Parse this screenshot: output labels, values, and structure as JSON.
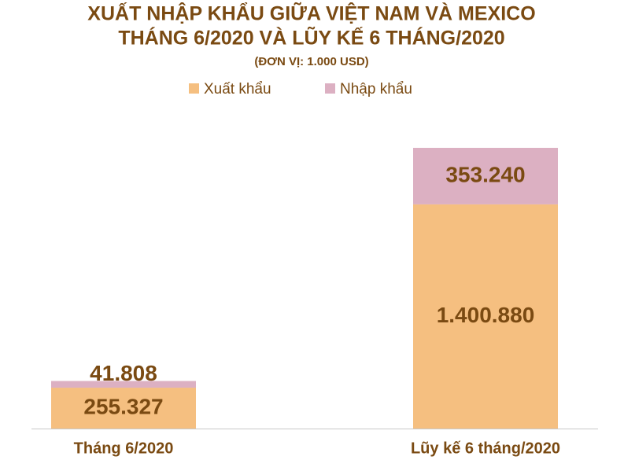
{
  "chart_data": {
    "type": "stacked-bar",
    "title": [
      "XUẤT NHẬP KHẨU GIỮA VIỆT NAM VÀ MEXICO",
      "THÁNG 6/2020 VÀ LŨY KẾ 6 THÁNG/2020"
    ],
    "subtitle": "(ĐƠN VỊ: 1.000 USD)",
    "categories": [
      "Tháng 6/2020",
      "Lũy kế 6 tháng/2020"
    ],
    "series": [
      {
        "name": "Xuất khẩu",
        "color": "#f5bf80",
        "values": [
          255327,
          1400880
        ],
        "value_labels": [
          "255.327",
          "1.400.880"
        ]
      },
      {
        "name": "Nhập khẩu",
        "color": "#dcb0c2",
        "values": [
          41808,
          353240
        ],
        "value_labels": [
          "41.808",
          "353.240"
        ]
      }
    ],
    "legend": "top"
  }
}
